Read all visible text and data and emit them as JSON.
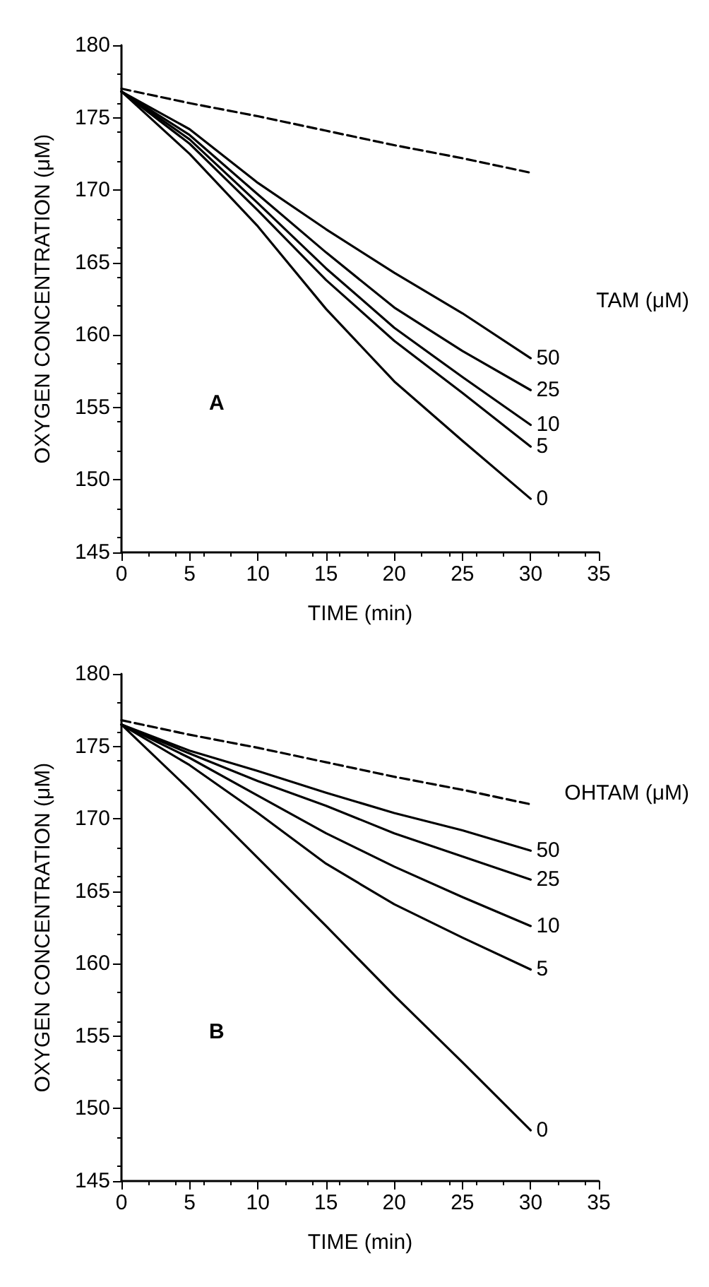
{
  "chart_data": [
    {
      "type": "line",
      "xlabel": "TIME (min)",
      "ylabel": "OXYGEN CONCENTRATION (μM)",
      "legend_title": "TAM (μM)",
      "annotations": [
        "A"
      ],
      "x": [
        0,
        5,
        10,
        15,
        20,
        25,
        30
      ],
      "xlim": [
        0,
        35
      ],
      "xticks": [
        0,
        5,
        10,
        15,
        20,
        25,
        30,
        35
      ],
      "ylim": [
        145,
        180
      ],
      "yticks": [
        145,
        150,
        155,
        160,
        165,
        170,
        175,
        180
      ],
      "grid": false,
      "marker": "none",
      "series": [
        {
          "color": "#000000",
          "line_style": "dashed",
          "values": [
            177,
            176.0,
            175.1,
            174.1,
            173.1,
            172.2,
            171.2
          ]
        },
        {
          "name": "50",
          "color": "#000000",
          "values": [
            176.8,
            174.2,
            170.5,
            167.3,
            164.3,
            161.5,
            158.4
          ]
        },
        {
          "name": "25",
          "color": "#000000",
          "values": [
            176.8,
            173.8,
            169.7,
            165.7,
            161.9,
            158.9,
            156.2
          ]
        },
        {
          "name": "10",
          "color": "#000000",
          "values": [
            176.8,
            173.5,
            169.1,
            164.6,
            160.5,
            157.1,
            153.8
          ]
        },
        {
          "name": "5",
          "color": "#000000",
          "values": [
            176.8,
            173.2,
            168.6,
            163.8,
            159.6,
            156.0,
            152.3
          ]
        },
        {
          "name": "0",
          "color": "#000000",
          "values": [
            176.8,
            172.5,
            167.5,
            161.8,
            156.8,
            152.7,
            148.7
          ]
        }
      ]
    },
    {
      "type": "line",
      "xlabel": "TIME (min)",
      "ylabel": "OXYGEN CONCENTRATION (μM)",
      "legend_title": "OHTAM (μM)",
      "annotations": [
        "B"
      ],
      "x": [
        0,
        5,
        10,
        15,
        20,
        25,
        30
      ],
      "xlim": [
        0,
        35
      ],
      "xticks": [
        0,
        5,
        10,
        15,
        20,
        25,
        30,
        35
      ],
      "ylim": [
        145,
        180
      ],
      "yticks": [
        145,
        150,
        155,
        160,
        165,
        170,
        175,
        180
      ],
      "grid": false,
      "marker": "none",
      "series": [
        {
          "color": "#000000",
          "line_style": "dashed",
          "values": [
            176.8,
            175.8,
            174.9,
            173.9,
            172.9,
            172.0,
            171.0
          ]
        },
        {
          "name": "50",
          "color": "#000000",
          "values": [
            176.5,
            174.7,
            173.3,
            171.8,
            170.4,
            169.2,
            167.8
          ]
        },
        {
          "name": "25",
          "color": "#000000",
          "values": [
            176.5,
            174.5,
            172.6,
            170.9,
            169.0,
            167.4,
            165.8
          ]
        },
        {
          "name": "10",
          "color": "#000000",
          "values": [
            176.5,
            174.2,
            171.6,
            169.0,
            166.7,
            164.6,
            162.6
          ]
        },
        {
          "name": "5",
          "color": "#000000",
          "values": [
            176.5,
            173.7,
            170.4,
            166.9,
            164.1,
            161.8,
            159.6
          ]
        },
        {
          "name": "0",
          "color": "#000000",
          "values": [
            176.5,
            172.0,
            167.3,
            162.6,
            157.8,
            153.2,
            148.5
          ]
        }
      ]
    }
  ]
}
